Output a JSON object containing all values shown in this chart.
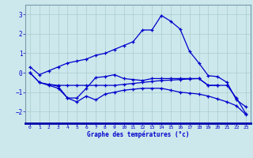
{
  "xlabel": "Graphe des températures (°c)",
  "background_color": "#cce8ec",
  "line_color": "#0000cc",
  "grid_color": "#aacccc",
  "xlim": [
    -0.5,
    23.5
  ],
  "ylim": [
    -2.6,
    3.5
  ],
  "yticks": [
    -2,
    -1,
    0,
    1,
    2,
    3
  ],
  "xticks": [
    0,
    1,
    2,
    3,
    4,
    5,
    6,
    7,
    8,
    9,
    10,
    11,
    12,
    13,
    14,
    15,
    16,
    17,
    18,
    19,
    20,
    21,
    22,
    23
  ],
  "line1_x": [
    0,
    1,
    2,
    3,
    4,
    5,
    6,
    7,
    8,
    9,
    10,
    11,
    12,
    13,
    14,
    15,
    16,
    17,
    18,
    19,
    20,
    21,
    22,
    23
  ],
  "line1_y": [
    0.3,
    -0.1,
    0.1,
    0.3,
    0.5,
    0.6,
    0.7,
    0.9,
    1.0,
    1.2,
    1.4,
    1.6,
    2.2,
    2.2,
    2.95,
    2.65,
    2.25,
    1.1,
    0.5,
    -0.15,
    -0.2,
    -0.5,
    -1.4,
    -1.75
  ],
  "line2_x": [
    2,
    3,
    4,
    5,
    6,
    7,
    8,
    9,
    10,
    11,
    12,
    13,
    14,
    15,
    16,
    17,
    18,
    19,
    20
  ],
  "line2_y": [
    -0.6,
    -0.7,
    -1.3,
    -1.3,
    -0.8,
    -0.25,
    -0.2,
    -0.1,
    -0.3,
    -0.35,
    -0.4,
    -0.3,
    -0.3,
    -0.3,
    -0.3,
    -0.3,
    -0.3,
    -0.65,
    -0.65
  ],
  "line3_x": [
    0,
    1,
    2,
    3,
    4,
    5,
    6,
    7,
    8,
    9,
    10,
    11,
    12,
    13,
    14,
    15,
    16,
    17,
    18,
    19,
    20,
    21,
    22,
    23
  ],
  "line3_y": [
    0.0,
    -0.5,
    -0.6,
    -0.65,
    -0.65,
    -0.65,
    -0.65,
    -0.65,
    -0.65,
    -0.65,
    -0.6,
    -0.55,
    -0.5,
    -0.45,
    -0.4,
    -0.38,
    -0.35,
    -0.32,
    -0.3,
    -0.65,
    -0.65,
    -0.65,
    -1.3,
    -2.1
  ],
  "line4_x": [
    0,
    1,
    2,
    3,
    4,
    5,
    6,
    7,
    8,
    9,
    10,
    11,
    12,
    13,
    14,
    15,
    16,
    17,
    18,
    19,
    20,
    21,
    22,
    23
  ],
  "line4_y": [
    0.0,
    -0.5,
    -0.65,
    -0.8,
    -1.3,
    -1.5,
    -1.2,
    -1.4,
    -1.1,
    -1.0,
    -0.9,
    -0.85,
    -0.8,
    -0.8,
    -0.8,
    -0.9,
    -1.0,
    -1.05,
    -1.1,
    -1.2,
    -1.35,
    -1.5,
    -1.7,
    -2.15
  ]
}
